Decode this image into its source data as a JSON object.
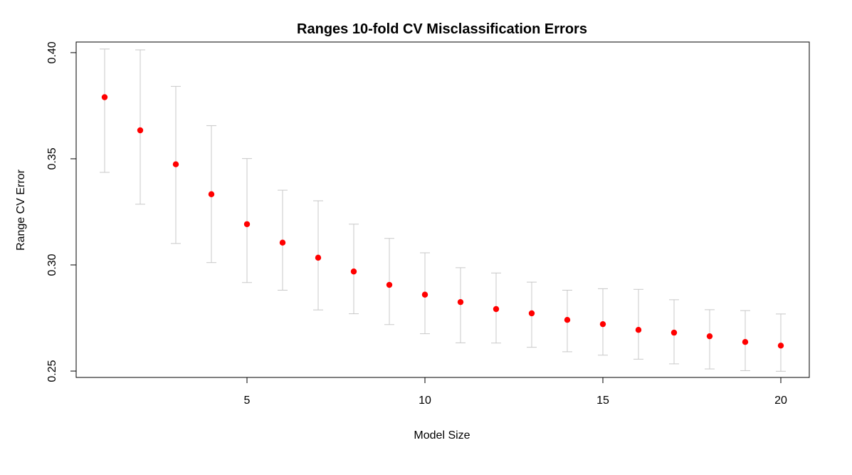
{
  "chart_data": {
    "type": "scatter",
    "title": "Ranges 10-fold CV Misclassification Errors",
    "xlabel": "Model Size",
    "ylabel": "Range CV Error",
    "xlim": [
      0.2,
      20.8
    ],
    "ylim": [
      0.247,
      0.405
    ],
    "x_ticks": [
      5,
      10,
      15,
      20
    ],
    "x_tick_labels": [
      "5",
      "10",
      "15",
      "20"
    ],
    "y_ticks": [
      0.25,
      0.3,
      0.35,
      0.4
    ],
    "y_tick_labels": [
      "0.25",
      "0.30",
      "0.35",
      "0.40"
    ],
    "grid": false,
    "point_color": "#ff0000",
    "errorbar_color": "#c8c8c8",
    "series": [
      {
        "x": [
          1,
          2,
          3,
          4,
          5,
          6,
          7,
          8,
          9,
          10,
          11,
          12,
          13,
          14,
          15,
          16,
          17,
          18,
          19,
          20
        ],
        "y": [
          0.379,
          0.3634,
          0.3474,
          0.3333,
          0.3192,
          0.3105,
          0.3034,
          0.2969,
          0.2906,
          0.286,
          0.2825,
          0.2792,
          0.2772,
          0.2741,
          0.2721,
          0.2694,
          0.2681,
          0.2664,
          0.2637,
          0.262
        ],
        "lower": [
          0.3436,
          0.3286,
          0.3101,
          0.3011,
          0.2917,
          0.2881,
          0.2788,
          0.277,
          0.2719,
          0.2676,
          0.2633,
          0.2632,
          0.2612,
          0.2591,
          0.2575,
          0.2556,
          0.2534,
          0.251,
          0.2502,
          0.2499
        ],
        "upper": [
          0.4017,
          0.4013,
          0.3841,
          0.3656,
          0.3501,
          0.3352,
          0.3302,
          0.3192,
          0.3125,
          0.3057,
          0.2987,
          0.2962,
          0.2919,
          0.2881,
          0.2888,
          0.2885,
          0.2836,
          0.2789,
          0.2785,
          0.2769
        ]
      }
    ]
  }
}
